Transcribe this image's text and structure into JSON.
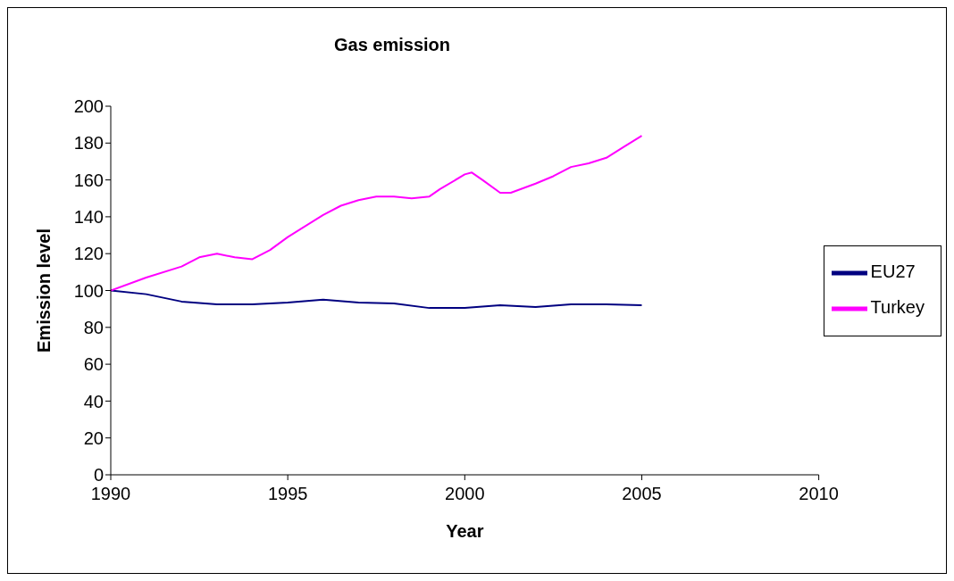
{
  "chart_data": {
    "type": "line",
    "title": "Gas emission",
    "xlabel": "Year",
    "ylabel": "Emission level",
    "xlim": [
      1990,
      2010
    ],
    "xticks": [
      1990,
      1995,
      2000,
      2005,
      2010
    ],
    "ylim": [
      0,
      200
    ],
    "yticks": [
      0,
      20,
      40,
      60,
      80,
      100,
      120,
      140,
      160,
      180,
      200
    ],
    "grid": false,
    "legend": "right",
    "marker": "none",
    "line_style": "solid",
    "series": [
      {
        "name": "EU27",
        "color": "#000080",
        "x": [
          1990,
          1991,
          1992,
          1993,
          1994,
          1995,
          1996,
          1997,
          1998,
          1999,
          2000,
          2001,
          2002,
          2003,
          2004,
          2005
        ],
        "values": [
          100,
          98,
          94,
          92.5,
          92.5,
          93.5,
          95,
          93.5,
          93,
          90.5,
          90.5,
          92,
          91,
          92.5,
          92.5,
          92
        ]
      },
      {
        "name": "Turkey",
        "color": "#ff00ff",
        "x": [
          1990,
          1991,
          1992,
          1992.5,
          1993,
          1993.5,
          1994,
          1994.5,
          1995,
          1996,
          1996.5,
          1997,
          1997.5,
          1998,
          1998.5,
          1999,
          1999.3,
          2000,
          2000.2,
          2000.5,
          2001,
          2001.3,
          2002,
          2002.5,
          2003,
          2003.5,
          2004,
          2004.5,
          2005
        ],
        "values": [
          100,
          107,
          113,
          118,
          120,
          118,
          117,
          122,
          129,
          141,
          146,
          149,
          151,
          151,
          150,
          151,
          155,
          163,
          164,
          160,
          153,
          153,
          158,
          162,
          167,
          169,
          172,
          178,
          184
        ]
      }
    ]
  }
}
